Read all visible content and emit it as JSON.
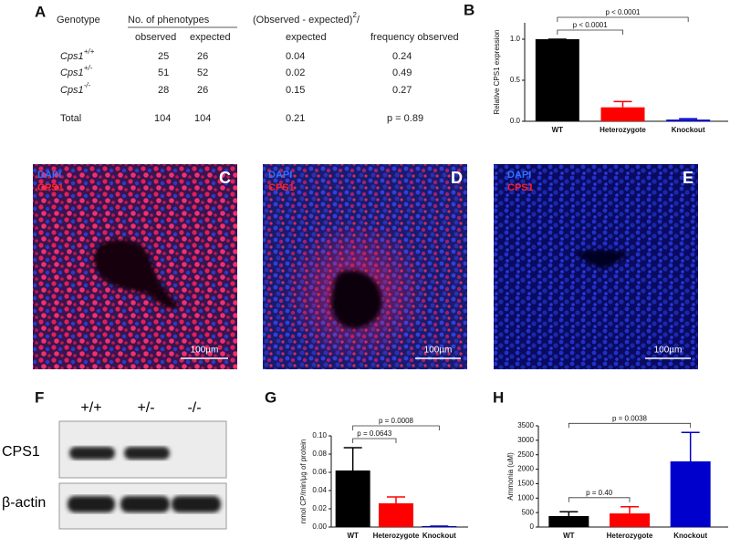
{
  "panels": {
    "a": "A",
    "b": "B",
    "c": "C",
    "d": "D",
    "e": "E",
    "f": "F",
    "g": "G",
    "h": "H"
  },
  "table": {
    "genotype_header": "Genotype",
    "phenotypes_header": "No. of phenotypes",
    "chi_header": {
      "text": "(Observed - expected)",
      "superscript": "2",
      "suffix": "/"
    },
    "subheaders": [
      "observed",
      "expected",
      "expected",
      "frequency observed"
    ],
    "rows": [
      {
        "genotype": "Cps1",
        "superscript": "+/+",
        "observed": 25,
        "expected": 26,
        "chi": 0.04,
        "frequency": 0.24
      },
      {
        "genotype": "Cps1",
        "superscript": "+/-",
        "observed": 51,
        "expected": 52,
        "chi": 0.02,
        "frequency": 0.49
      },
      {
        "genotype": "Cps1",
        "superscript": "-/-",
        "observed": 28,
        "expected": 26,
        "chi": 0.15,
        "frequency": 0.27
      }
    ],
    "total": {
      "label": "Total",
      "observed": 104,
      "expected": 104,
      "chi": 0.21,
      "frequency": "p = 0.89"
    }
  },
  "images": [
    {
      "dapi": "DAPI",
      "cps1": "CPS1",
      "scale": "100µm"
    },
    {
      "dapi": "DAPI",
      "cps1": "CPS1",
      "scale": "100µm"
    },
    {
      "dapi": "DAPI",
      "cps1": "CPS1",
      "scale": "100µm"
    }
  ],
  "blot": {
    "lanes": [
      "+/+",
      "+/-",
      "-/-"
    ],
    "rows": [
      "CPS1",
      "β-actin"
    ]
  },
  "chart_data": [
    {
      "type": "bar",
      "ylabel": "Relative CPS1 expression",
      "categories": [
        "WT",
        "Heterozygote",
        "Knockout"
      ],
      "values": [
        1.0,
        0.17,
        0.02
      ],
      "errors": [
        0,
        0.07,
        0.01
      ],
      "colors": [
        "#000000",
        "#ff0000",
        "#0000cc"
      ],
      "ylim": [
        0,
        1.2
      ],
      "yticks": [
        {
          "value": 0,
          "label": "0.0"
        },
        0.5,
        {
          "value": 1,
          "label": "1.0"
        }
      ],
      "brackets": [
        {
          "label": "p < 0.0001",
          "from": "WT",
          "to": "Heterozygote"
        },
        {
          "label": "p < 0.0001",
          "from": "WT",
          "to": "Knockout"
        }
      ]
    },
    {
      "type": "bar",
      "ylabel": "nmol CP/min/µg of protein",
      "categories": [
        "WT",
        "Heterozygote",
        "Knockout"
      ],
      "values": [
        0.062,
        0.026,
        0.001
      ],
      "errors": [
        0.025,
        0.007,
        0
      ],
      "colors": [
        "#000000",
        "#ff0000",
        "#0000cc"
      ],
      "ylim": [
        0,
        0.1
      ],
      "yticks": [
        {
          "value": 0,
          "label": "0.00"
        },
        0.02,
        0.04,
        0.06,
        0.08,
        {
          "value": 0.1,
          "label": "0.10"
        }
      ],
      "brackets": [
        {
          "label": "p = 0.0643",
          "from": "WT",
          "to": "Heterozygote"
        },
        {
          "label": "p = 0.0008",
          "from": "WT",
          "to": "Knockout"
        }
      ]
    },
    {
      "type": "bar",
      "ylabel": "Ammonia (uM)",
      "categories": [
        "WT",
        "Heterozygote",
        "Knockout"
      ],
      "values": [
        380,
        470,
        2270
      ],
      "errors": [
        150,
        230,
        1000
      ],
      "colors": [
        "#000000",
        "#ff0000",
        "#0000cc"
      ],
      "ylim": [
        0,
        3500
      ],
      "yticks": [
        0,
        500,
        1000,
        1500,
        2000,
        2500,
        3000,
        3500
      ],
      "brackets": [
        {
          "label": "p = 0.40",
          "from": "WT",
          "to": "Heterozygote"
        },
        {
          "label": "p = 0.0038",
          "from": "WT",
          "to": "Knockout"
        }
      ]
    }
  ]
}
